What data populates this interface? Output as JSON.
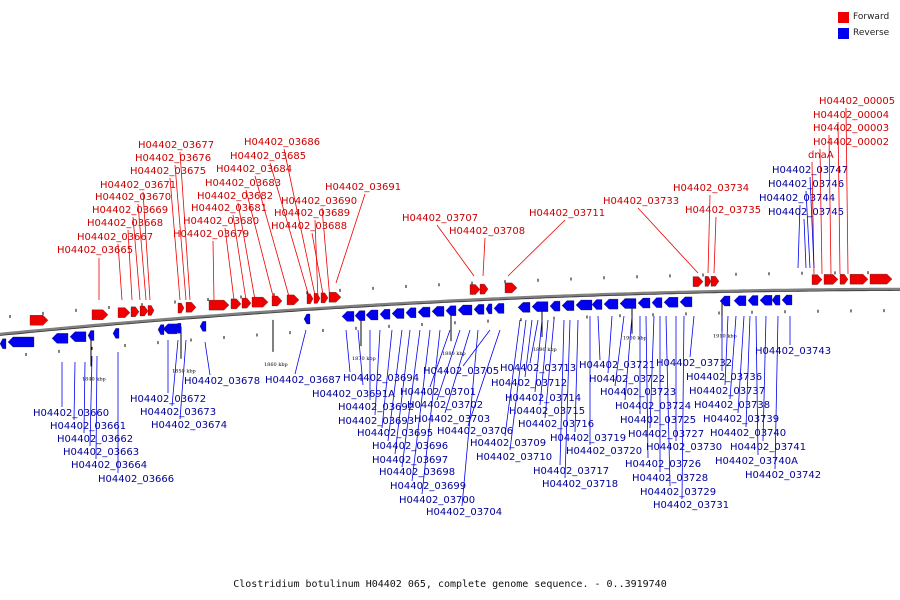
{
  "legend": [
    {
      "label": "Forward",
      "color": "#ee0000"
    },
    {
      "label": "Reverse",
      "color": "#0000ee"
    }
  ],
  "caption": "Clostridium botulinum H04402 065, complete genome sequence. - 0..3919740",
  "colors": {
    "forward": "#ee0000",
    "reverse": "#0000ee",
    "backbone": "#808080",
    "label_forward": "#cc0000",
    "label_reverse": "#000099"
  },
  "scale_ticks": [
    "1840 kbp",
    "1850 kbp",
    "1860 kbp",
    "1870 kbp",
    "1880 kbp",
    "1890 kbp",
    "1900 kbp",
    "1910 kbp"
  ],
  "forward_genes": [
    "H04402_03665",
    "H04402_03667",
    "H04402_03668",
    "H04402_03669",
    "H04402_03670",
    "H04402_03671",
    "H04402_03675",
    "H04402_03676",
    "H04402_03677",
    "H04402_03679",
    "H04402_03680",
    "H04402_03681",
    "H04402_03682",
    "H04402_03683",
    "H04402_03684",
    "H04402_03685",
    "H04402_03686",
    "H04402_03688",
    "H04402_03689",
    "H04402_03690",
    "H04402_03691",
    "H04402_03707",
    "H04402_03708",
    "H04402_03711",
    "H04402_03733",
    "H04402_03734",
    "H04402_03735",
    "H04402_00002",
    "H04402_00003",
    "H04402_00004",
    "H04402_00005",
    "dnaA"
  ],
  "reverse_genes": [
    "H04402_03660",
    "H04402_03661",
    "H04402_03662",
    "H04402_03663",
    "H04402_03664",
    "H04402_03666",
    "H04402_03672",
    "H04402_03673",
    "H04402_03674",
    "H04402_03678",
    "H04402_03687",
    "H04402_03691A",
    "H04402_03692",
    "H04402_03693",
    "H04402_03694",
    "H04402_03695",
    "H04402_03696",
    "H04402_03697",
    "H04402_03698",
    "H04402_03699",
    "H04402_03700",
    "H04402_03701",
    "H04402_03702",
    "H04402_03703",
    "H04402_03704",
    "H04402_03705",
    "H04402_03706",
    "H04402_03709",
    "H04402_03710",
    "H04402_03712",
    "H04402_03713",
    "H04402_03714",
    "H04402_03715",
    "H04402_03716",
    "H04402_03717",
    "H04402_03718",
    "H04402_03719",
    "H04402_03720",
    "H04402_03721",
    "H04402_03722",
    "H04402_03723",
    "H04402_03724",
    "H04402_03725",
    "H04402_03726",
    "H04402_03727",
    "H04402_03728",
    "H04402_03729",
    "H04402_03730",
    "H04402_03731",
    "H04402_03732",
    "H04402_03736",
    "H04402_03737",
    "H04402_03738",
    "H04402_03739",
    "H04402_03740",
    "H04402_03740A",
    "H04402_03741",
    "H04402_03742",
    "H04402_03743",
    "H04402_03744",
    "H04402_03745",
    "H04402_03746",
    "H04402_03747"
  ]
}
